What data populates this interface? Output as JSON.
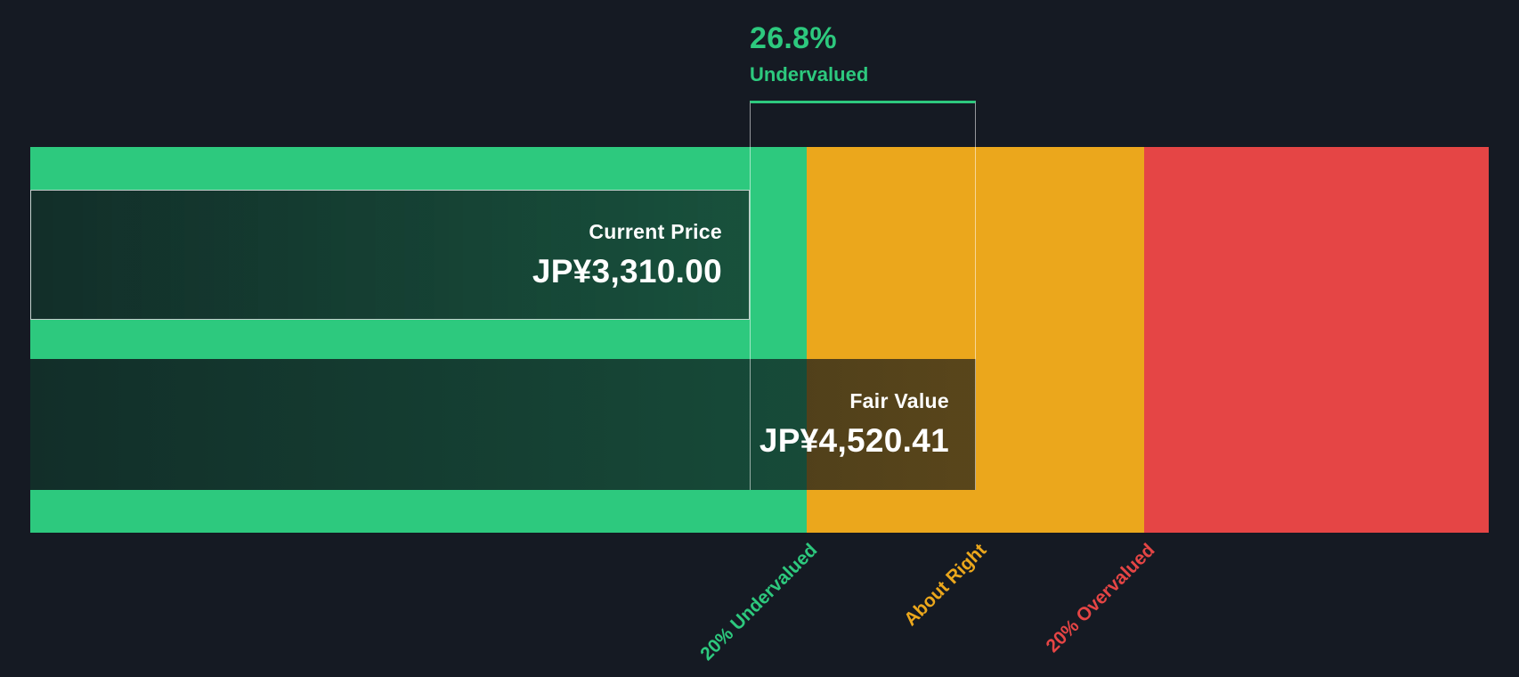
{
  "colors": {
    "background": "#151a23",
    "undervalued_green": "#2dc97e",
    "about_right_amber": "#eba71c",
    "overvalued_red": "#e54545",
    "text_white": "#ffffff"
  },
  "chart_data": {
    "type": "bar",
    "subtype": "fair-value-gauge",
    "bars": [
      {
        "name": "Current Price",
        "currency": "JP¥",
        "value": 3310.0,
        "value_label": "JP¥3,310.00"
      },
      {
        "name": "Fair Value",
        "currency": "JP¥",
        "value": 4520.41,
        "value_label": "JP¥4,520.41"
      }
    ],
    "callout": {
      "percent": "26.8%",
      "status": "Undervalued"
    },
    "zones": [
      {
        "label": "20% Undervalued",
        "color": "#2dc97e"
      },
      {
        "label": "About Right",
        "color": "#eba71c"
      },
      {
        "label": "20% Overvalued",
        "color": "#e54545"
      }
    ],
    "legend_position": "none",
    "grid": false
  }
}
